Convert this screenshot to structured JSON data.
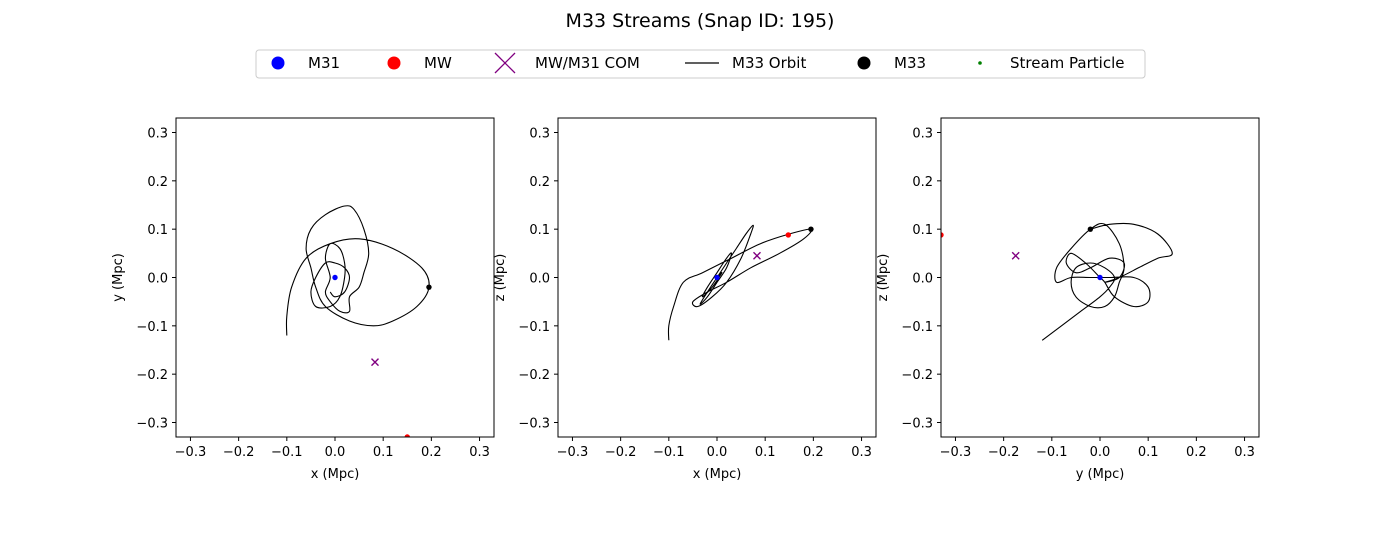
{
  "title": "M33 Streams (Snap ID: 195)",
  "legend": [
    {
      "label": "M31",
      "marker": "dot",
      "color": "#0000ff"
    },
    {
      "label": "MW",
      "marker": "dot",
      "color": "#ff0000"
    },
    {
      "label": "MW/M31 COM",
      "marker": "x",
      "color": "#800080"
    },
    {
      "label": "M33 Orbit",
      "marker": "line",
      "color": "#000000"
    },
    {
      "label": "M33",
      "marker": "dot",
      "color": "#000000"
    },
    {
      "label": "Stream Particle",
      "marker": "smalldot",
      "color": "#008000"
    }
  ],
  "chart_data": [
    {
      "type": "scatter",
      "xlabel": "x (Mpc)",
      "ylabel": "y (Mpc)",
      "xlim": [
        -0.33,
        0.33
      ],
      "ylim": [
        -0.33,
        0.33
      ],
      "ticks": [
        -0.3,
        -0.2,
        -0.1,
        0.0,
        0.1,
        0.2,
        0.3
      ],
      "tick_labels": [
        "−0.3",
        "−0.2",
        "−0.1",
        "0.0",
        "0.1",
        "0.2",
        "0.3"
      ],
      "points": {
        "M31": [
          0.0,
          0.0
        ],
        "MW": [
          0.15,
          -0.33
        ],
        "COM": [
          0.083,
          -0.175
        ],
        "M33": [
          0.195,
          -0.02
        ]
      },
      "orbit": [
        [
          -0.1,
          -0.12
        ],
        [
          -0.1,
          -0.08
        ],
        [
          -0.09,
          -0.02
        ],
        [
          -0.06,
          0.04
        ],
        [
          -0.01,
          0.07
        ],
        [
          0.05,
          0.08
        ],
        [
          0.12,
          0.06
        ],
        [
          0.18,
          0.02
        ],
        [
          0.195,
          -0.02
        ],
        [
          0.17,
          -0.06
        ],
        [
          0.12,
          -0.09
        ],
        [
          0.08,
          -0.1
        ],
        [
          0.03,
          -0.09
        ],
        [
          -0.02,
          -0.06
        ],
        [
          -0.04,
          -0.02
        ],
        [
          -0.05,
          0.02
        ],
        [
          -0.06,
          0.06
        ],
        [
          -0.05,
          0.1
        ],
        [
          -0.02,
          0.13
        ],
        [
          0.02,
          0.148
        ],
        [
          0.04,
          0.14
        ],
        [
          0.06,
          0.1
        ],
        [
          0.07,
          0.05
        ],
        [
          0.06,
          0.01
        ],
        [
          0.05,
          -0.02
        ],
        [
          0.03,
          -0.04
        ],
        [
          0.03,
          -0.07
        ],
        [
          0.01,
          -0.07
        ],
        [
          -0.01,
          -0.05
        ],
        [
          -0.02,
          -0.03
        ],
        [
          -0.01,
          0.0
        ],
        [
          -0.02,
          0.04
        ],
        [
          -0.01,
          0.07
        ],
        [
          0.01,
          0.06
        ],
        [
          0.02,
          0.03
        ],
        [
          0.02,
          0.0
        ],
        [
          0.01,
          -0.04
        ],
        [
          -0.01,
          -0.06
        ],
        [
          -0.04,
          -0.06
        ],
        [
          -0.05,
          -0.03
        ],
        [
          -0.04,
          0.0
        ],
        [
          -0.02,
          0.03
        ],
        [
          0.0,
          0.03
        ],
        [
          0.02,
          0.02
        ],
        [
          0.03,
          0.0
        ],
        [
          0.02,
          -0.03
        ],
        [
          0.0,
          -0.04
        ],
        [
          -0.01,
          -0.03
        ]
      ]
    },
    {
      "type": "scatter",
      "xlabel": "x (Mpc)",
      "ylabel": "z (Mpc)",
      "xlim": [
        -0.33,
        0.33
      ],
      "ylim": [
        -0.33,
        0.33
      ],
      "ticks": [
        -0.3,
        -0.2,
        -0.1,
        0.0,
        0.1,
        0.2,
        0.3
      ],
      "tick_labels": [
        "−0.3",
        "−0.2",
        "−0.1",
        "0.0",
        "0.1",
        "0.2",
        "0.3"
      ],
      "points": {
        "M31": [
          0.0,
          0.0
        ],
        "MW": [
          0.148,
          0.088
        ],
        "COM": [
          0.083,
          0.045
        ],
        "M33": [
          0.195,
          0.1
        ]
      },
      "orbit": [
        [
          -0.1,
          -0.13
        ],
        [
          -0.1,
          -0.1
        ],
        [
          -0.09,
          -0.06
        ],
        [
          -0.07,
          -0.01
        ],
        [
          -0.03,
          0.01
        ],
        [
          0.03,
          0.04
        ],
        [
          0.09,
          0.07
        ],
        [
          0.15,
          0.09
        ],
        [
          0.195,
          0.1
        ],
        [
          0.18,
          0.08
        ],
        [
          0.13,
          0.05
        ],
        [
          0.07,
          0.02
        ],
        [
          0.02,
          -0.01
        ],
        [
          -0.02,
          -0.03
        ],
        [
          -0.05,
          -0.05
        ],
        [
          -0.04,
          -0.06
        ],
        [
          -0.01,
          -0.04
        ],
        [
          0.02,
          -0.01
        ],
        [
          0.05,
          0.04
        ],
        [
          0.07,
          0.09
        ],
        [
          0.075,
          0.108
        ],
        [
          0.06,
          0.09
        ],
        [
          0.04,
          0.06
        ],
        [
          0.02,
          0.03
        ],
        [
          0.0,
          0.0
        ],
        [
          -0.02,
          -0.03
        ],
        [
          -0.035,
          -0.055
        ],
        [
          -0.02,
          -0.04
        ],
        [
          0.0,
          -0.01
        ],
        [
          0.02,
          0.02
        ],
        [
          0.03,
          0.05
        ],
        [
          0.02,
          0.04
        ],
        [
          0.0,
          0.01
        ],
        [
          -0.02,
          -0.02
        ],
        [
          -0.03,
          -0.04
        ],
        [
          -0.01,
          -0.02
        ],
        [
          0.01,
          0.01
        ],
        [
          0.0,
          0.0
        ]
      ]
    },
    {
      "type": "scatter",
      "xlabel": "y (Mpc)",
      "ylabel": "z (Mpc)",
      "xlim": [
        -0.33,
        0.33
      ],
      "ylim": [
        -0.33,
        0.33
      ],
      "ticks": [
        -0.3,
        -0.2,
        -0.1,
        0.0,
        0.1,
        0.2,
        0.3
      ],
      "tick_labels": [
        "−0.3",
        "−0.2",
        "−0.1",
        "0.0",
        "0.1",
        "0.2",
        "0.3"
      ],
      "points": {
        "M31": [
          0.0,
          0.0
        ],
        "MW": [
          -0.33,
          0.088
        ],
        "COM": [
          -0.175,
          0.045
        ],
        "M33": [
          -0.02,
          0.1
        ]
      },
      "orbit": [
        [
          -0.12,
          -0.13
        ],
        [
          -0.08,
          -0.1
        ],
        [
          -0.04,
          -0.07
        ],
        [
          0.0,
          -0.04
        ],
        [
          0.02,
          -0.02
        ],
        [
          0.03,
          0.0
        ],
        [
          0.01,
          0.02
        ],
        [
          -0.02,
          0.03
        ],
        [
          -0.05,
          0.02
        ],
        [
          -0.06,
          -0.01
        ],
        [
          -0.05,
          -0.04
        ],
        [
          -0.02,
          -0.06
        ],
        [
          0.01,
          -0.06
        ],
        [
          0.03,
          -0.04
        ],
        [
          0.04,
          -0.01
        ],
        [
          0.05,
          0.02
        ],
        [
          0.04,
          0.07
        ],
        [
          0.01,
          0.11
        ],
        [
          -0.02,
          0.1
        ],
        [
          -0.06,
          0.06
        ],
        [
          -0.09,
          0.02
        ],
        [
          -0.09,
          -0.01
        ],
        [
          -0.06,
          0.0
        ],
        [
          -0.02,
          0.0
        ],
        [
          0.02,
          0.0
        ],
        [
          0.07,
          0.0
        ],
        [
          0.1,
          -0.02
        ],
        [
          0.1,
          -0.05
        ],
        [
          0.07,
          -0.06
        ],
        [
          0.03,
          -0.04
        ],
        [
          0.01,
          -0.01
        ],
        [
          0.0,
          0.0
        ],
        [
          -0.03,
          0.03
        ],
        [
          -0.06,
          0.05
        ],
        [
          -0.07,
          0.03
        ],
        [
          -0.05,
          0.01
        ],
        [
          -0.02,
          0.02
        ],
        [
          0.02,
          0.04
        ],
        [
          0.05,
          0.03
        ],
        [
          0.04,
          0.0
        ],
        [
          0.01,
          -0.01
        ],
        [
          0.04,
          0.0
        ],
        [
          0.08,
          0.02
        ],
        [
          0.12,
          0.04
        ],
        [
          0.15,
          0.05
        ],
        [
          0.12,
          0.09
        ],
        [
          0.07,
          0.11
        ],
        [
          0.02,
          0.11
        ],
        [
          -0.02,
          0.1
        ]
      ]
    }
  ]
}
